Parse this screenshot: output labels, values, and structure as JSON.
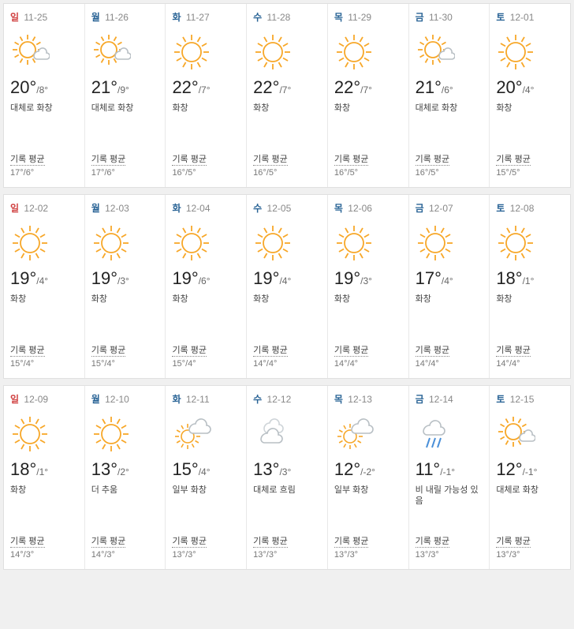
{
  "colors": {
    "sun": "#f7a728",
    "cloud": "#b8bfc4",
    "cloud_light": "#ced4d8",
    "rain": "#4a90d9",
    "bg": "#ffffff",
    "divider": "#e8e8e8",
    "text_dark": "#222222",
    "text_mid": "#666666",
    "text_light": "#888888"
  },
  "avg_label": "기록 평균",
  "weeks": [
    [
      {
        "dow": "일",
        "dow_class": "sun",
        "date": "11-25",
        "icon": "partly",
        "hi": "20°",
        "lo": "/8°",
        "cond": "대체로 화창",
        "avg": "17°/6°"
      },
      {
        "dow": "월",
        "dow_class": "mon",
        "date": "11-26",
        "icon": "partly",
        "hi": "21°",
        "lo": "/9°",
        "cond": "대체로 화창",
        "avg": "17°/6°"
      },
      {
        "dow": "화",
        "dow_class": "tue",
        "date": "11-27",
        "icon": "sunny",
        "hi": "22°",
        "lo": "/7°",
        "cond": "화창",
        "avg": "16°/5°"
      },
      {
        "dow": "수",
        "dow_class": "wed",
        "date": "11-28",
        "icon": "sunny",
        "hi": "22°",
        "lo": "/7°",
        "cond": "화창",
        "avg": "16°/5°"
      },
      {
        "dow": "목",
        "dow_class": "thu",
        "date": "11-29",
        "icon": "sunny",
        "hi": "22°",
        "lo": "/7°",
        "cond": "화창",
        "avg": "16°/5°"
      },
      {
        "dow": "금",
        "dow_class": "fri",
        "date": "11-30",
        "icon": "partly",
        "hi": "21°",
        "lo": "/6°",
        "cond": "대체로 화창",
        "avg": "16°/5°"
      },
      {
        "dow": "토",
        "dow_class": "sat",
        "date": "12-01",
        "icon": "sunny",
        "hi": "20°",
        "lo": "/4°",
        "cond": "화창",
        "avg": "15°/5°"
      }
    ],
    [
      {
        "dow": "일",
        "dow_class": "sun",
        "date": "12-02",
        "icon": "sunny",
        "hi": "19°",
        "lo": "/4°",
        "cond": "화창",
        "avg": "15°/4°"
      },
      {
        "dow": "월",
        "dow_class": "mon",
        "date": "12-03",
        "icon": "sunny",
        "hi": "19°",
        "lo": "/3°",
        "cond": "화창",
        "avg": "15°/4°"
      },
      {
        "dow": "화",
        "dow_class": "tue",
        "date": "12-04",
        "icon": "sunny",
        "hi": "19°",
        "lo": "/6°",
        "cond": "화창",
        "avg": "15°/4°"
      },
      {
        "dow": "수",
        "dow_class": "wed",
        "date": "12-05",
        "icon": "sunny",
        "hi": "19°",
        "lo": "/4°",
        "cond": "화창",
        "avg": "14°/4°"
      },
      {
        "dow": "목",
        "dow_class": "thu",
        "date": "12-06",
        "icon": "sunny",
        "hi": "19°",
        "lo": "/3°",
        "cond": "화창",
        "avg": "14°/4°"
      },
      {
        "dow": "금",
        "dow_class": "fri",
        "date": "12-07",
        "icon": "sunny",
        "hi": "17°",
        "lo": "/4°",
        "cond": "화창",
        "avg": "14°/4°"
      },
      {
        "dow": "토",
        "dow_class": "sat",
        "date": "12-08",
        "icon": "sunny",
        "hi": "18°",
        "lo": "/1°",
        "cond": "화창",
        "avg": "14°/4°"
      }
    ],
    [
      {
        "dow": "일",
        "dow_class": "sun",
        "date": "12-09",
        "icon": "sunny",
        "hi": "18°",
        "lo": "/1°",
        "cond": "화창",
        "avg": "14°/3°"
      },
      {
        "dow": "월",
        "dow_class": "mon",
        "date": "12-10",
        "icon": "sunny",
        "hi": "13°",
        "lo": "/2°",
        "cond": "더 추움",
        "avg": "14°/3°"
      },
      {
        "dow": "화",
        "dow_class": "tue",
        "date": "12-11",
        "icon": "partcloud",
        "hi": "15°",
        "lo": "/4°",
        "cond": "일부 화창",
        "avg": "13°/3°"
      },
      {
        "dow": "수",
        "dow_class": "wed",
        "date": "12-12",
        "icon": "cloudy",
        "hi": "13°",
        "lo": "/3°",
        "cond": "대체로 흐림",
        "avg": "13°/3°"
      },
      {
        "dow": "목",
        "dow_class": "thu",
        "date": "12-13",
        "icon": "partcloud",
        "hi": "12°",
        "lo": "/-2°",
        "cond": "일부 화창",
        "avg": "13°/3°"
      },
      {
        "dow": "금",
        "dow_class": "fri",
        "date": "12-14",
        "icon": "rain",
        "hi": "11°",
        "lo": "/-1°",
        "cond": "비 내릴 가능성 있음",
        "avg": "13°/3°"
      },
      {
        "dow": "토",
        "dow_class": "sat",
        "date": "12-15",
        "icon": "partly",
        "hi": "12°",
        "lo": "/-1°",
        "cond": "대체로 화창",
        "avg": "13°/3°"
      }
    ]
  ]
}
